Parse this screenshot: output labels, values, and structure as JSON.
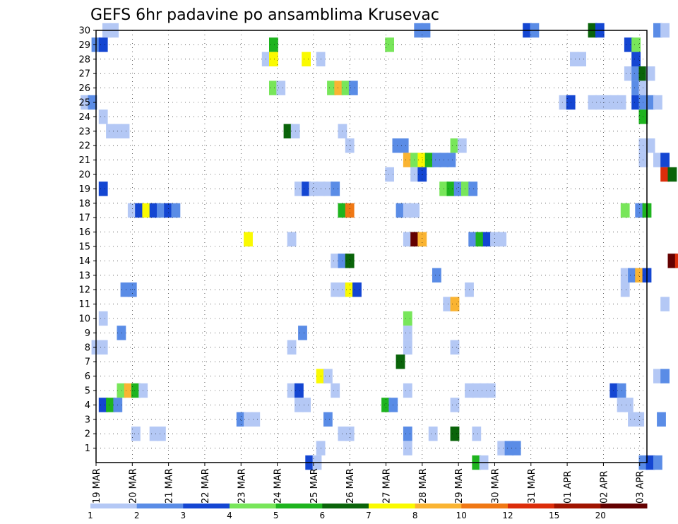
{
  "chart_data": {
    "type": "heatmap",
    "title": "GEFS 6hr padavine po ansamblima Krusevac",
    "xlabel": "",
    "ylabel": "",
    "x_ticks": [
      "19 MAR",
      "20 MAR",
      "21 MAR",
      "22 MAR",
      "23 MAR",
      "24 MAR",
      "25 MAR",
      "26 MAR",
      "27 MAR",
      "28 MAR",
      "29 MAR",
      "30 MAR",
      "31 MAR",
      "01 APR",
      "02 APR",
      "03 APR"
    ],
    "y_ticks": [
      1,
      2,
      3,
      4,
      5,
      6,
      7,
      8,
      9,
      10,
      11,
      12,
      13,
      14,
      15,
      16,
      17,
      18,
      19,
      20,
      21,
      22,
      23,
      24,
      25,
      26,
      27,
      28,
      29,
      30
    ],
    "grid": true,
    "legend": {
      "placement": "bottom",
      "labels": [
        "1",
        "2",
        "3",
        "4",
        "5",
        "6",
        "7",
        "8",
        "10",
        "12",
        "15",
        "20"
      ],
      "colors": [
        "#b4c8f5",
        "#5a8ce6",
        "#1446d2",
        "#78e65a",
        "#1eb41e",
        "#0a640a",
        "#fafa00",
        "#fab432",
        "#f07814",
        "#dc2d0a",
        "#a01400",
        "#640000"
      ]
    },
    "cells": [
      [
        2.3,
        30,
        1
      ],
      [
        2.5,
        30,
        1
      ],
      [
        10.9,
        30,
        2
      ],
      [
        11.1,
        30,
        2
      ],
      [
        13.9,
        30,
        3
      ],
      [
        14.1,
        30,
        2
      ],
      [
        15.7,
        30,
        6
      ],
      [
        15.9,
        30,
        3
      ],
      [
        17.5,
        30,
        2
      ],
      [
        17.7,
        30,
        1
      ],
      [
        2.0,
        29,
        2
      ],
      [
        2.2,
        29,
        3
      ],
      [
        6.9,
        29,
        5
      ],
      [
        10.1,
        29,
        4
      ],
      [
        16.7,
        29,
        3
      ],
      [
        16.9,
        29,
        4
      ],
      [
        6.7,
        28,
        1
      ],
      [
        6.9,
        28,
        7
      ],
      [
        7.8,
        28,
        7
      ],
      [
        8.2,
        28,
        1
      ],
      [
        15.2,
        28,
        1
      ],
      [
        15.4,
        28,
        1
      ],
      [
        16.9,
        28,
        3
      ],
      [
        16.7,
        27,
        1
      ],
      [
        16.9,
        27,
        2
      ],
      [
        17.1,
        27,
        6
      ],
      [
        17.3,
        27,
        1
      ],
      [
        6.9,
        26,
        4
      ],
      [
        7.1,
        26,
        1
      ],
      [
        8.5,
        26,
        4
      ],
      [
        8.7,
        26,
        8
      ],
      [
        8.9,
        26,
        4
      ],
      [
        9.1,
        26,
        2
      ],
      [
        16.9,
        26,
        2
      ],
      [
        17.1,
        26,
        1
      ],
      [
        1.7,
        25,
        1
      ],
      [
        1.9,
        25,
        2
      ],
      [
        14.9,
        25,
        1
      ],
      [
        15.1,
        25,
        3
      ],
      [
        15.7,
        25,
        1
      ],
      [
        15.9,
        25,
        1
      ],
      [
        16.1,
        25,
        1
      ],
      [
        16.3,
        25,
        1
      ],
      [
        16.5,
        25,
        1
      ],
      [
        16.9,
        25,
        3
      ],
      [
        17.1,
        25,
        2
      ],
      [
        17.3,
        25,
        2
      ],
      [
        17.5,
        25,
        1
      ],
      [
        2.2,
        24,
        1
      ],
      [
        17.1,
        24,
        5
      ],
      [
        2.4,
        23,
        1
      ],
      [
        2.6,
        23,
        1
      ],
      [
        2.8,
        23,
        1
      ],
      [
        7.3,
        23,
        6
      ],
      [
        7.5,
        23,
        1
      ],
      [
        8.8,
        23,
        1
      ],
      [
        9.0,
        22,
        1
      ],
      [
        10.3,
        22,
        2
      ],
      [
        10.5,
        22,
        2
      ],
      [
        11.9,
        22,
        4
      ],
      [
        12.1,
        22,
        1
      ],
      [
        17.1,
        22,
        1
      ],
      [
        17.3,
        22,
        1
      ],
      [
        10.6,
        21,
        8
      ],
      [
        10.8,
        21,
        4
      ],
      [
        11.0,
        21,
        7
      ],
      [
        11.2,
        21,
        5
      ],
      [
        11.4,
        21,
        2
      ],
      [
        11.6,
        21,
        2
      ],
      [
        11.8,
        21,
        2
      ],
      [
        17.1,
        21,
        1
      ],
      [
        17.5,
        21,
        1
      ],
      [
        17.7,
        21,
        3
      ],
      [
        10.1,
        20,
        1
      ],
      [
        10.8,
        20,
        1
      ],
      [
        11.0,
        20,
        3
      ],
      [
        17.7,
        20,
        10
      ],
      [
        17.9,
        20,
        6
      ],
      [
        2.2,
        19,
        3
      ],
      [
        7.6,
        19,
        1
      ],
      [
        7.8,
        19,
        3
      ],
      [
        8.0,
        19,
        1
      ],
      [
        8.2,
        19,
        1
      ],
      [
        8.4,
        19,
        1
      ],
      [
        8.6,
        19,
        2
      ],
      [
        11.6,
        19,
        4
      ],
      [
        11.8,
        19,
        5
      ],
      [
        12.0,
        19,
        2
      ],
      [
        12.2,
        19,
        4
      ],
      [
        12.4,
        19,
        2
      ],
      [
        3.0,
        17.5,
        1
      ],
      [
        3.2,
        17.5,
        3
      ],
      [
        3.4,
        17.5,
        7
      ],
      [
        3.6,
        17.5,
        3
      ],
      [
        3.8,
        17.5,
        2
      ],
      [
        4.0,
        17.5,
        3
      ],
      [
        4.2,
        17.5,
        2
      ],
      [
        8.8,
        17.5,
        5
      ],
      [
        9.0,
        17.5,
        9
      ],
      [
        10.4,
        17.5,
        2
      ],
      [
        10.6,
        17.5,
        1
      ],
      [
        10.8,
        17.5,
        1
      ],
      [
        16.6,
        17.5,
        4
      ],
      [
        17.0,
        17.5,
        2
      ],
      [
        17.2,
        17.5,
        5
      ],
      [
        6.2,
        15.5,
        7
      ],
      [
        7.4,
        15.5,
        1
      ],
      [
        10.6,
        15.5,
        1
      ],
      [
        10.8,
        15.5,
        12
      ],
      [
        11.0,
        15.5,
        8
      ],
      [
        12.4,
        15.5,
        2
      ],
      [
        12.6,
        15.5,
        5
      ],
      [
        12.8,
        15.5,
        3
      ],
      [
        13.0,
        15.5,
        1
      ],
      [
        13.2,
        15.5,
        1
      ],
      [
        8.6,
        14,
        1
      ],
      [
        8.8,
        14,
        2
      ],
      [
        9.0,
        14,
        6
      ],
      [
        17.9,
        14,
        12
      ],
      [
        18.1,
        14,
        10
      ],
      [
        11.4,
        13,
        2
      ],
      [
        16.6,
        13,
        1
      ],
      [
        16.8,
        13,
        2
      ],
      [
        17.0,
        13,
        8
      ],
      [
        17.2,
        13,
        3
      ],
      [
        2.8,
        12,
        2
      ],
      [
        3.0,
        12,
        2
      ],
      [
        8.6,
        12,
        1
      ],
      [
        8.8,
        12,
        1
      ],
      [
        9.0,
        12,
        7
      ],
      [
        9.2,
        12,
        3
      ],
      [
        12.3,
        12,
        1
      ],
      [
        16.6,
        12,
        1
      ],
      [
        11.7,
        11,
        1
      ],
      [
        11.9,
        11,
        8
      ],
      [
        17.7,
        11,
        1
      ],
      [
        2.2,
        10,
        1
      ],
      [
        10.6,
        10,
        4
      ],
      [
        2.7,
        9,
        2
      ],
      [
        7.7,
        9,
        2
      ],
      [
        10.6,
        9,
        1
      ],
      [
        2.0,
        8,
        1
      ],
      [
        2.2,
        8,
        1
      ],
      [
        7.4,
        8,
        1
      ],
      [
        10.6,
        8,
        1
      ],
      [
        11.9,
        8,
        1
      ],
      [
        10.4,
        7,
        6
      ],
      [
        8.2,
        6,
        7
      ],
      [
        8.4,
        6,
        1
      ],
      [
        17.5,
        6,
        1
      ],
      [
        17.7,
        6,
        2
      ],
      [
        2.7,
        5,
        4
      ],
      [
        2.9,
        5,
        8
      ],
      [
        3.1,
        5,
        5
      ],
      [
        3.3,
        5,
        1
      ],
      [
        7.4,
        5,
        1
      ],
      [
        7.6,
        5,
        3
      ],
      [
        8.6,
        5,
        1
      ],
      [
        10.6,
        5,
        1
      ],
      [
        12.3,
        5,
        1
      ],
      [
        12.5,
        5,
        1
      ],
      [
        12.7,
        5,
        1
      ],
      [
        12.9,
        5,
        1
      ],
      [
        16.3,
        5,
        3
      ],
      [
        16.5,
        5,
        2
      ],
      [
        2.2,
        4,
        3
      ],
      [
        2.4,
        4,
        5
      ],
      [
        2.6,
        4,
        2
      ],
      [
        7.6,
        4,
        1
      ],
      [
        7.8,
        4,
        1
      ],
      [
        10.0,
        4,
        5
      ],
      [
        10.2,
        4,
        2
      ],
      [
        11.9,
        4,
        1
      ],
      [
        16.5,
        4,
        1
      ],
      [
        16.7,
        4,
        1
      ],
      [
        6.0,
        3,
        2
      ],
      [
        6.2,
        3,
        1
      ],
      [
        6.4,
        3,
        1
      ],
      [
        8.4,
        3,
        2
      ],
      [
        16.8,
        3,
        1
      ],
      [
        17.0,
        3,
        1
      ],
      [
        17.6,
        3,
        2
      ],
      [
        3.1,
        2,
        1
      ],
      [
        3.6,
        2,
        1
      ],
      [
        3.8,
        2,
        1
      ],
      [
        8.8,
        2,
        1
      ],
      [
        9.0,
        2,
        1
      ],
      [
        10.6,
        2,
        2
      ],
      [
        11.3,
        2,
        1
      ],
      [
        11.9,
        2,
        6
      ],
      [
        12.5,
        2,
        1
      ],
      [
        8.2,
        1,
        1
      ],
      [
        10.6,
        1,
        1
      ],
      [
        13.2,
        1,
        1
      ],
      [
        13.4,
        1,
        2
      ],
      [
        13.6,
        1,
        2
      ],
      [
        7.9,
        0,
        3
      ],
      [
        8.1,
        0,
        1
      ],
      [
        12.5,
        0,
        5
      ],
      [
        12.7,
        0,
        1
      ],
      [
        17.1,
        0,
        2
      ],
      [
        17.3,
        0,
        3
      ],
      [
        17.5,
        0,
        2
      ]
    ]
  }
}
